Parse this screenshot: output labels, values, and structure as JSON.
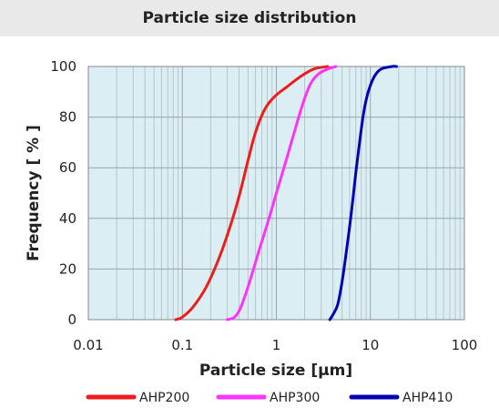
{
  "chart_data": {
    "type": "line",
    "title": "Particle size distribution",
    "xlabel": "Particle size [μm]",
    "ylabel": "Frequency [ % ]",
    "xscale": "log",
    "xlim": [
      0.01,
      100
    ],
    "ylim": [
      0,
      100
    ],
    "x_ticks": [
      "0.01",
      "0.1",
      "1",
      "10",
      "100"
    ],
    "y_ticks": [
      "0",
      "20",
      "40",
      "60",
      "80",
      "100"
    ],
    "grid": true,
    "legend_position": "bottom",
    "series": [
      {
        "name": "AHP200",
        "color": "#ee1c1c",
        "points": [
          [
            0.085,
            0
          ],
          [
            0.1,
            1
          ],
          [
            0.13,
            5
          ],
          [
            0.18,
            13
          ],
          [
            0.25,
            25
          ],
          [
            0.33,
            38
          ],
          [
            0.41,
            50
          ],
          [
            0.5,
            63
          ],
          [
            0.6,
            74
          ],
          [
            0.75,
            83
          ],
          [
            0.95,
            88
          ],
          [
            1.3,
            92
          ],
          [
            1.8,
            96
          ],
          [
            2.5,
            99
          ],
          [
            3.5,
            100
          ]
        ]
      },
      {
        "name": "AHP300",
        "color": "#ff33ff",
        "points": [
          [
            0.3,
            0
          ],
          [
            0.36,
            1
          ],
          [
            0.42,
            5
          ],
          [
            0.52,
            15
          ],
          [
            0.65,
            27
          ],
          [
            0.82,
            39
          ],
          [
            1.0,
            50
          ],
          [
            1.25,
            62
          ],
          [
            1.55,
            74
          ],
          [
            1.9,
            85
          ],
          [
            2.3,
            93
          ],
          [
            2.8,
            97
          ],
          [
            3.5,
            99
          ],
          [
            4.3,
            100
          ]
        ]
      },
      {
        "name": "AHP410",
        "color": "#0000b4",
        "points": [
          [
            3.7,
            0
          ],
          [
            4.0,
            2
          ],
          [
            4.5,
            6
          ],
          [
            5.0,
            15
          ],
          [
            5.7,
            30
          ],
          [
            6.4,
            45
          ],
          [
            7.1,
            60
          ],
          [
            7.8,
            72
          ],
          [
            8.5,
            82
          ],
          [
            9.5,
            90
          ],
          [
            11,
            96
          ],
          [
            13,
            99
          ],
          [
            17,
            100
          ],
          [
            19,
            100
          ]
        ]
      }
    ]
  }
}
